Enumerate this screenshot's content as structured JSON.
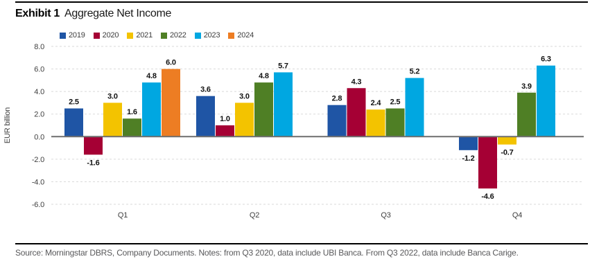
{
  "header": {
    "exhibit_label": "Exhibit 1",
    "title": "Aggregate Net Income"
  },
  "source_note": "Source: Morningstar DBRS, Company Documents. Notes: from Q3 2020, data include UBI Banca. From Q3 2022, data include Banca Carige.",
  "chart_data": {
    "type": "bar",
    "title": "Aggregate Net Income",
    "categories": [
      "Q1",
      "Q2",
      "Q3",
      "Q4"
    ],
    "series": [
      {
        "name": "2019",
        "color": "#1F55A5",
        "values": [
          2.5,
          3.6,
          2.8,
          -1.2
        ]
      },
      {
        "name": "2020",
        "color": "#A50034",
        "values": [
          -1.6,
          1.0,
          4.3,
          -4.6
        ]
      },
      {
        "name": "2021",
        "color": "#F3C300",
        "values": [
          3.0,
          3.0,
          2.4,
          -0.7
        ]
      },
      {
        "name": "2022",
        "color": "#4F7F25",
        "values": [
          1.6,
          4.8,
          2.5,
          3.9
        ]
      },
      {
        "name": "2023",
        "color": "#00A7E1",
        "values": [
          4.8,
          5.7,
          5.2,
          6.3
        ]
      },
      {
        "name": "2024",
        "color": "#ED7D23",
        "values": [
          6.0,
          null,
          null,
          null
        ]
      }
    ],
    "xlabel": "",
    "ylabel": "EUR billion",
    "ylim": [
      -6,
      8
    ],
    "ytick_step": 2,
    "ytick_labels": [
      "8.0",
      "6.0",
      "4.0",
      "2.0",
      "0.0",
      "-2.0",
      "-4.0",
      "-6.0"
    ],
    "grid": "horizontal-dashed",
    "zero_line": true,
    "legend_position": "top-left",
    "value_labels": "outside-end"
  }
}
